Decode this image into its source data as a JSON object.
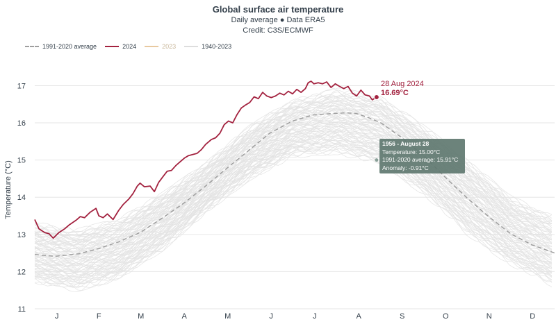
{
  "chart_data": {
    "type": "line",
    "title": "Global surface air temperature",
    "subtitle": "Daily average ● Data ERA5",
    "credit": "Credit: C3S/ECMWF",
    "xlabel": "",
    "ylabel": "Temperature (°C)",
    "ylim": [
      11,
      17.4
    ],
    "y_ticks": [
      "11",
      "12",
      "13",
      "14",
      "15",
      "16",
      "17"
    ],
    "categories": [
      "J",
      "F",
      "M",
      "A",
      "M",
      "J",
      "J",
      "A",
      "S",
      "O",
      "N",
      "D"
    ],
    "legend": {
      "placement": "top-left",
      "items": [
        {
          "label": "1991-2020 average",
          "color": "#9e9e9e",
          "style": "dashed"
        },
        {
          "label": "2024",
          "color": "#a3223f",
          "style": "solid"
        },
        {
          "label": "2023",
          "color": "#e8c9a0",
          "style": "solid"
        },
        {
          "label": "1940-2023",
          "color": "#dddddd",
          "style": "solid"
        }
      ]
    },
    "series": [
      {
        "name": "1991-2020 average",
        "style": "dashed",
        "color": "#9e9e9e",
        "points": [
          [
            1,
            12.46
          ],
          [
            15,
            12.41
          ],
          [
            32,
            12.48
          ],
          [
            46,
            12.62
          ],
          [
            60,
            12.8
          ],
          [
            75,
            13.05
          ],
          [
            91,
            13.45
          ],
          [
            106,
            13.85
          ],
          [
            121,
            14.3
          ],
          [
            135,
            14.75
          ],
          [
            152,
            15.28
          ],
          [
            166,
            15.72
          ],
          [
            182,
            16.05
          ],
          [
            196,
            16.21
          ],
          [
            210,
            16.25
          ],
          [
            220,
            16.27
          ],
          [
            227,
            16.25
          ],
          [
            236,
            16.13
          ],
          [
            244,
            16.0
          ],
          [
            258,
            15.62
          ],
          [
            273,
            15.15
          ],
          [
            288,
            14.58
          ],
          [
            304,
            14.0
          ],
          [
            319,
            13.5
          ],
          [
            335,
            13.02
          ],
          [
            350,
            12.72
          ],
          [
            366,
            12.5
          ]
        ]
      },
      {
        "name": "2024",
        "style": "solid",
        "color": "#a3223f",
        "points": [
          [
            1,
            13.4
          ],
          [
            4,
            13.15
          ],
          [
            8,
            13.05
          ],
          [
            11,
            13.02
          ],
          [
            14,
            12.9
          ],
          [
            18,
            13.05
          ],
          [
            22,
            13.15
          ],
          [
            25,
            13.25
          ],
          [
            30,
            13.38
          ],
          [
            33,
            13.48
          ],
          [
            36,
            13.45
          ],
          [
            40,
            13.6
          ],
          [
            44,
            13.7
          ],
          [
            46,
            13.5
          ],
          [
            49,
            13.45
          ],
          [
            52,
            13.55
          ],
          [
            56,
            13.4
          ],
          [
            60,
            13.65
          ],
          [
            63,
            13.8
          ],
          [
            67,
            13.95
          ],
          [
            70,
            14.1
          ],
          [
            73,
            14.3
          ],
          [
            75,
            14.38
          ],
          [
            78,
            14.28
          ],
          [
            82,
            14.3
          ],
          [
            85,
            14.15
          ],
          [
            88,
            14.4
          ],
          [
            91,
            14.55
          ],
          [
            94,
            14.7
          ],
          [
            97,
            14.72
          ],
          [
            100,
            14.85
          ],
          [
            103,
            14.95
          ],
          [
            106,
            15.05
          ],
          [
            109,
            15.12
          ],
          [
            112,
            15.15
          ],
          [
            115,
            15.18
          ],
          [
            118,
            15.28
          ],
          [
            121,
            15.42
          ],
          [
            125,
            15.55
          ],
          [
            128,
            15.6
          ],
          [
            131,
            15.72
          ],
          [
            134,
            15.95
          ],
          [
            137,
            16.05
          ],
          [
            140,
            16.0
          ],
          [
            143,
            16.22
          ],
          [
            146,
            16.4
          ],
          [
            149,
            16.48
          ],
          [
            152,
            16.55
          ],
          [
            155,
            16.7
          ],
          [
            158,
            16.65
          ],
          [
            161,
            16.82
          ],
          [
            164,
            16.72
          ],
          [
            167,
            16.68
          ],
          [
            170,
            16.72
          ],
          [
            173,
            16.8
          ],
          [
            176,
            16.75
          ],
          [
            179,
            16.85
          ],
          [
            182,
            16.78
          ],
          [
            185,
            16.9
          ],
          [
            188,
            16.82
          ],
          [
            191,
            16.92
          ],
          [
            193,
            17.08
          ],
          [
            195,
            17.12
          ],
          [
            197,
            17.05
          ],
          [
            200,
            17.08
          ],
          [
            203,
            17.05
          ],
          [
            206,
            17.1
          ],
          [
            209,
            16.95
          ],
          [
            212,
            17.05
          ],
          [
            215,
            16.98
          ],
          [
            218,
            16.92
          ],
          [
            221,
            16.98
          ],
          [
            224,
            16.8
          ],
          [
            227,
            16.72
          ],
          [
            230,
            16.88
          ],
          [
            233,
            16.75
          ],
          [
            236,
            16.72
          ],
          [
            238,
            16.62
          ],
          [
            241,
            16.69
          ]
        ]
      },
      {
        "name": "1940-2023 envelope (upper)",
        "style": "band",
        "color": "#dddddd",
        "points": [
          [
            1,
            13.3
          ],
          [
            30,
            13.1
          ],
          [
            60,
            13.4
          ],
          [
            91,
            14.1
          ],
          [
            121,
            14.9
          ],
          [
            152,
            15.9
          ],
          [
            182,
            16.6
          ],
          [
            213,
            16.9
          ],
          [
            244,
            16.7
          ],
          [
            274,
            15.9
          ],
          [
            305,
            15.0
          ],
          [
            335,
            14.0
          ],
          [
            366,
            13.5
          ]
        ]
      },
      {
        "name": "1940-2023 envelope (lower)",
        "style": "band",
        "color": "#dddddd",
        "points": [
          [
            1,
            11.7
          ],
          [
            30,
            11.5
          ],
          [
            60,
            11.8
          ],
          [
            91,
            12.6
          ],
          [
            121,
            13.6
          ],
          [
            152,
            14.5
          ],
          [
            182,
            15.1
          ],
          [
            213,
            15.2
          ],
          [
            244,
            14.9
          ],
          [
            274,
            14.1
          ],
          [
            305,
            13.0
          ],
          [
            335,
            12.2
          ],
          [
            366,
            11.6
          ]
        ]
      }
    ],
    "annotations": {
      "date": "28 Aug 2024",
      "value": "16.69°C"
    },
    "tooltip": {
      "title": "1956 - August 28",
      "lines": [
        "Temperature: 15.00°C",
        "1991-2020 average: 15.91°C",
        "Anomaly: -0.91°C"
      ]
    }
  }
}
